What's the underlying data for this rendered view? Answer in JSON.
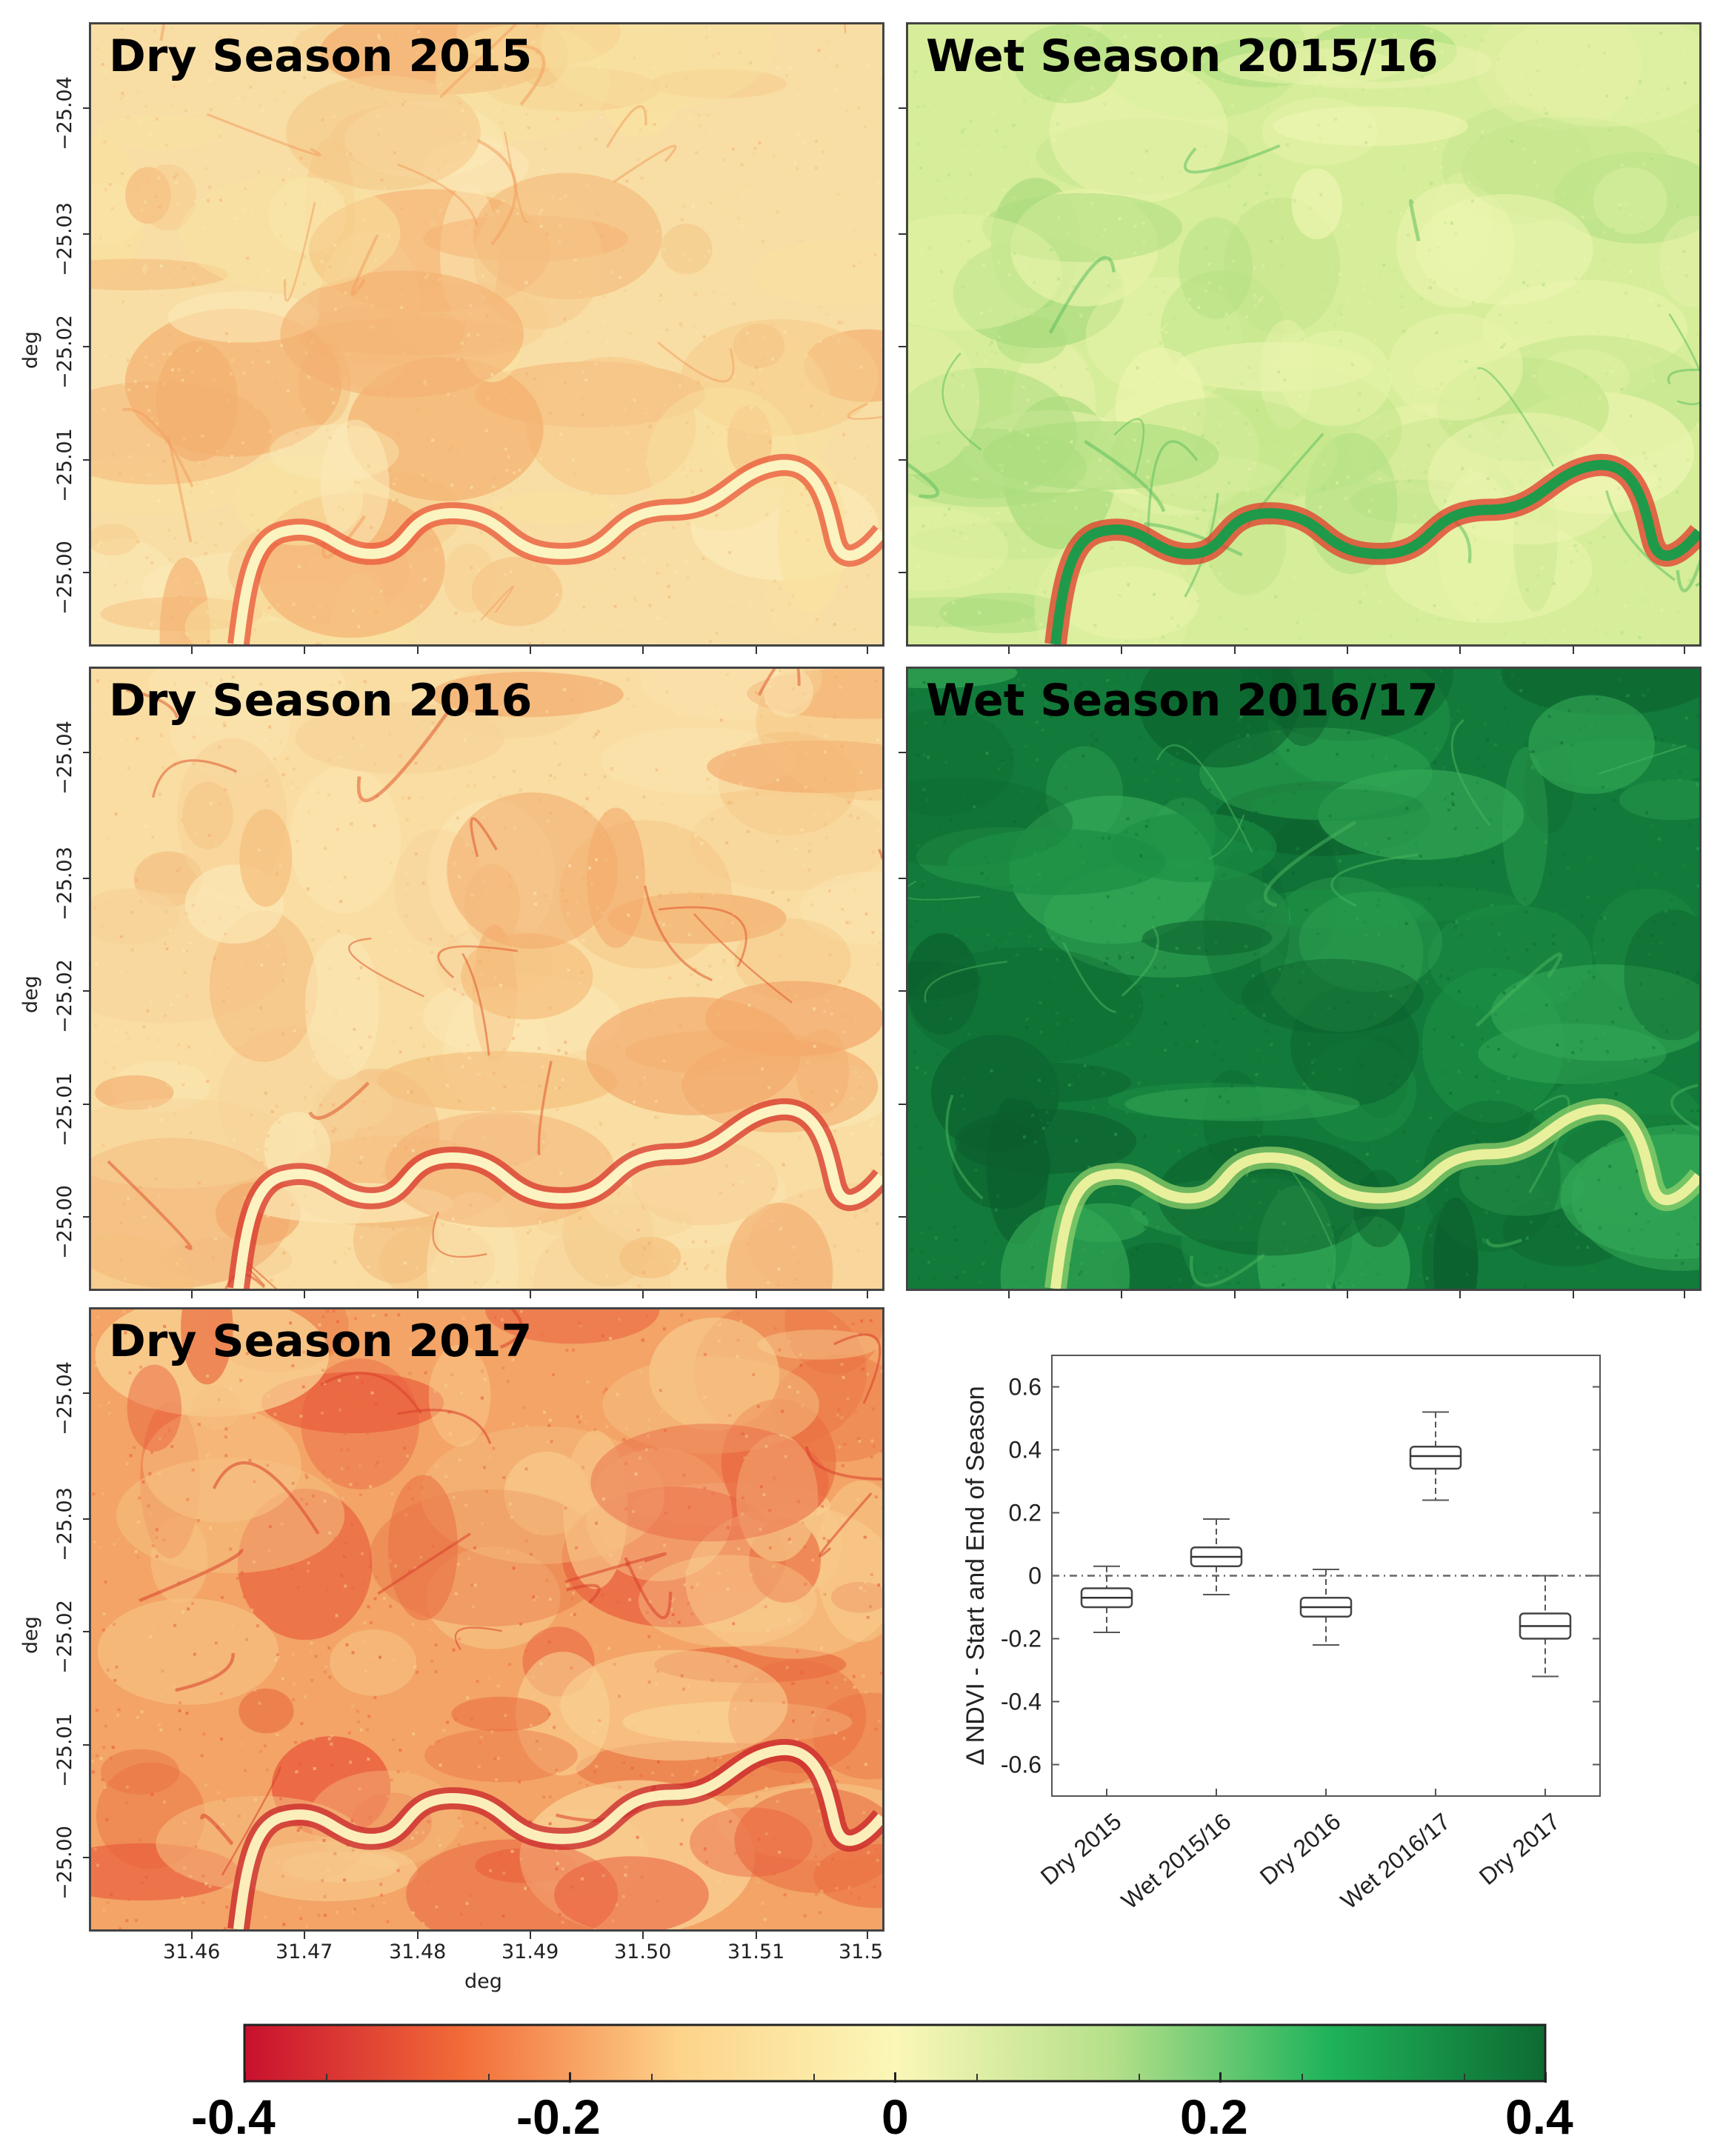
{
  "panels": [
    {
      "title": "Dry Season 2015",
      "palette": "dry-light"
    },
    {
      "title": "Wet Season 2015/16",
      "palette": "wet-light"
    },
    {
      "title": "Dry Season 2016",
      "palette": "dry-mid"
    },
    {
      "title": "Wet Season 2016/17",
      "palette": "wet-dark"
    },
    {
      "title": "Dry Season 2017",
      "palette": "dry-strong"
    }
  ],
  "map_axes": {
    "y_label": "deg",
    "y_ticks": [
      "−25.04",
      "−25.03",
      "−25.02",
      "−25.01",
      "−25.00"
    ],
    "x_label": "deg",
    "x_ticks": [
      "31.46",
      "31.47",
      "31.48",
      "31.49",
      "31.50",
      "31.51",
      "31.5"
    ]
  },
  "colorbar": {
    "min": -0.4,
    "max": 0.4,
    "labels": [
      "-0.4",
      "-0.2",
      "0",
      "0.2",
      "0.4"
    ],
    "colors": [
      "#c8102e",
      "#f26b38",
      "#fdd38a",
      "#fbf7b8",
      "#b5e08a",
      "#1fb35a",
      "#0d6b32"
    ]
  },
  "chart_data": {
    "type": "box",
    "categories": [
      "Dry 2015",
      "Wet 2015/16",
      "Dry 2016",
      "Wet 2016/17",
      "Dry 2017"
    ],
    "ylabel": "Δ NDVI - Start and End of Season",
    "ylim": [
      -0.7,
      0.7
    ],
    "yticks": [
      "-0.6",
      "-0.4",
      "-0.2",
      "0",
      "0.2",
      "0.4",
      "0.6"
    ],
    "reference_line": 0,
    "series": [
      {
        "category": "Dry 2015",
        "min": -0.18,
        "q1": -0.1,
        "median": -0.07,
        "q3": -0.04,
        "max": 0.03
      },
      {
        "category": "Wet 2015/16",
        "min": -0.06,
        "q1": 0.03,
        "median": 0.06,
        "q3": 0.09,
        "max": 0.18
      },
      {
        "category": "Dry 2016",
        "min": -0.22,
        "q1": -0.13,
        "median": -0.1,
        "q3": -0.07,
        "max": 0.02
      },
      {
        "category": "Wet 2016/17",
        "min": 0.24,
        "q1": 0.34,
        "median": 0.38,
        "q3": 0.41,
        "max": 0.52
      },
      {
        "category": "Dry 2017",
        "min": -0.32,
        "q1": -0.2,
        "median": -0.16,
        "q3": -0.12,
        "max": 0.0
      }
    ]
  }
}
